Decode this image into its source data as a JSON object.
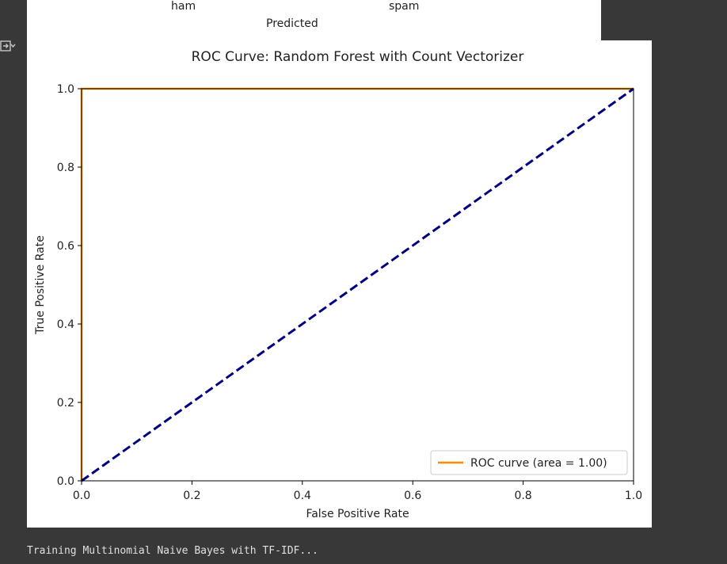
{
  "previous_figure": {
    "tick_labels": [
      "ham",
      "spam"
    ],
    "xlabel": "Predicted"
  },
  "output_toggle_icon": "output-collapse-icon",
  "chart_data": {
    "type": "line",
    "title": "ROC Curve: Random Forest with Count Vectorizer",
    "xlabel": "False Positive Rate",
    "ylabel": "True Positive Rate",
    "xlim": [
      0.0,
      1.0
    ],
    "ylim": [
      0.0,
      1.0
    ],
    "xticks": [
      "0.0",
      "0.2",
      "0.4",
      "0.6",
      "0.8",
      "1.0"
    ],
    "yticks": [
      "0.0",
      "0.2",
      "0.4",
      "0.6",
      "0.8",
      "1.0"
    ],
    "grid": false,
    "legend_position": "lower right",
    "series": [
      {
        "name": "ROC curve (area = 1.00)",
        "color": "#ff8c00",
        "style": "solid",
        "x": [
          0.0,
          0.0,
          1.0
        ],
        "y": [
          0.0,
          1.0,
          1.0
        ]
      },
      {
        "color": "#000080",
        "style": "dashed",
        "x": [
          0.0,
          1.0
        ],
        "y": [
          0.0,
          1.0
        ]
      }
    ]
  },
  "console": {
    "text": "Training Multinomial Naive Bayes with TF-IDF..."
  }
}
